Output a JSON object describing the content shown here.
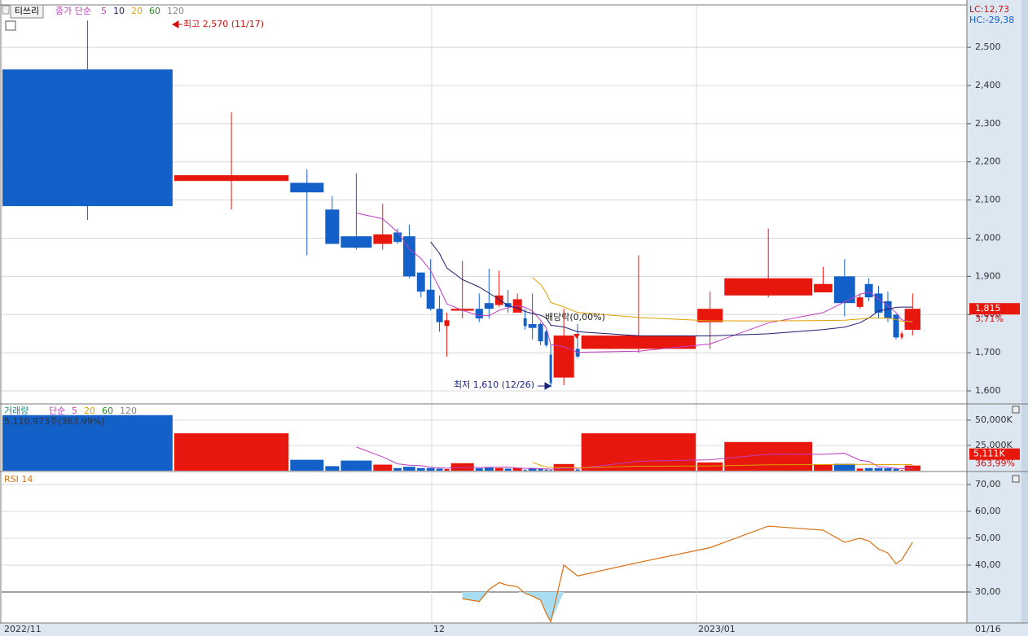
{
  "chart_data": [
    {
      "type": "candlestick",
      "tab": "티쓰리",
      "indicator": "종가 단순",
      "ma_periods": [
        5,
        10,
        20,
        60,
        120
      ],
      "ma_colors": [
        "#c03cc0",
        "#1c1c70",
        "#e0a000",
        "#2a8a2a",
        "#888888"
      ],
      "up_color": "#e8170d",
      "down_color": "#1360c9",
      "open": [
        2442,
        2150,
        2145,
        2075,
        2005,
        1985,
        2015,
        2005,
        1910,
        1865,
        1815,
        1770,
        1810,
        1815,
        1830,
        1825,
        1830,
        1805,
        1790,
        1775,
        1775,
        1755,
        1695,
        1635,
        1710,
        1710,
        1780,
        1850,
        1858,
        1900,
        1820,
        1880,
        1855,
        1835,
        1800,
        1740,
        1760
      ],
      "high": [
        2570,
        2330,
        2180,
        2110,
        2170,
        2090,
        2025,
        2035,
        1910,
        1945,
        1850,
        1805,
        1940,
        1855,
        1920,
        1915,
        1865,
        1855,
        1815,
        1855,
        1780,
        1760,
        1720,
        1815,
        1775,
        1955,
        1860,
        2025,
        1925,
        1945,
        1855,
        1895,
        1875,
        1860,
        1800,
        1755,
        1855
      ],
      "low": [
        2048,
        2075,
        1955,
        1985,
        1970,
        1970,
        1985,
        1895,
        1845,
        1810,
        1755,
        1690,
        1790,
        1780,
        1790,
        1820,
        1805,
        1805,
        1760,
        1735,
        1720,
        1715,
        1610,
        1615,
        1685,
        1700,
        1710,
        1845,
        1858,
        1795,
        1815,
        1835,
        1790,
        1780,
        1735,
        1735,
        1745
      ],
      "close": [
        2084,
        2165,
        2120,
        1985,
        1975,
        2010,
        1990,
        1900,
        1860,
        1815,
        1780,
        1785,
        1815,
        1790,
        1815,
        1850,
        1820,
        1840,
        1770,
        1765,
        1730,
        1720,
        1620,
        1745,
        1690,
        1745,
        1815,
        1895,
        1880,
        1830,
        1845,
        1845,
        1805,
        1790,
        1740,
        1750,
        1815
      ],
      "ylim": [
        1568,
        2609
      ],
      "yticks": [
        {
          "value": 1600,
          "label": "1,600"
        },
        {
          "value": 1700,
          "label": "1,700"
        },
        {
          "value": 1800,
          "label": "1,800"
        },
        {
          "value": 1900,
          "label": "1,900"
        },
        {
          "value": 2000,
          "label": "2,000"
        },
        {
          "value": 2100,
          "label": "2,100"
        },
        {
          "value": 2200,
          "label": "2,200"
        },
        {
          "value": 2300,
          "label": "2,300"
        },
        {
          "value": 2400,
          "label": "2,400"
        },
        {
          "value": 2500,
          "label": "2,500"
        }
      ],
      "last": {
        "value": 1815,
        "label": "1,815"
      },
      "change": {
        "value": 3.71,
        "label": "3,71%"
      },
      "lc_label": "LC:12,73",
      "hc_label": "HC:-29,38",
      "annotations": [
        "최고 2,570 (11/17)",
        "최저 1,610 (12/26)",
        "배당락(0,00%)"
      ],
      "x_labels": [
        "2022/11",
        "12",
        "2023/01",
        "01/16"
      ]
    },
    {
      "type": "bar",
      "title": "거래량",
      "indicator": "단순",
      "ma_periods": [
        5,
        20,
        60,
        120
      ],
      "ma_colors": [
        "#c03cc0",
        "#e0a000",
        "#2a8a2a",
        "#888888"
      ],
      "values": [
        55000,
        37000,
        10800,
        4500,
        10000,
        6000,
        2600,
        3900,
        2600,
        2600,
        2100,
        1600,
        7400,
        2400,
        2900,
        2600,
        2100,
        2900,
        1050,
        2600,
        1600,
        1050,
        800,
        6600,
        1300,
        37000,
        8200,
        28400,
        6000,
        6800,
        2100,
        2600,
        2600,
        2400,
        1850,
        800,
        5111
      ],
      "ylim": [
        0,
        65300
      ],
      "yticks": [
        {
          "value": 25000,
          "label": "25,000K"
        },
        {
          "value": 50000,
          "label": "50,000K"
        }
      ],
      "info": "5,110,973주(363,99%)",
      "last": {
        "value": 5111,
        "label": "5,111K"
      },
      "ratio": {
        "value": 363.99,
        "label": "363,99%"
      }
    },
    {
      "type": "line",
      "title": "RSI 14",
      "color": "#d87010",
      "fill_color": "#a8dcf0",
      "reference_line": 30,
      "values": [
        null,
        null,
        null,
        null,
        null,
        null,
        null,
        null,
        null,
        null,
        null,
        null,
        27.5,
        26.5,
        31,
        33.5,
        32.5,
        32,
        29.5,
        28.5,
        27,
        22,
        19,
        40,
        36,
        41,
        46.5,
        54.5,
        53,
        48.5,
        50,
        49,
        46,
        44.5,
        40.5,
        42,
        48.5
      ],
      "ylim": [
        18.5,
        74.5
      ],
      "yticks": [
        {
          "value": 30,
          "label": "30,00"
        },
        {
          "value": 40,
          "label": "40,00"
        },
        {
          "value": 50,
          "label": "50,00"
        },
        {
          "value": 60,
          "label": "60,00"
        },
        {
          "value": 70,
          "label": "70,00"
        }
      ]
    }
  ]
}
